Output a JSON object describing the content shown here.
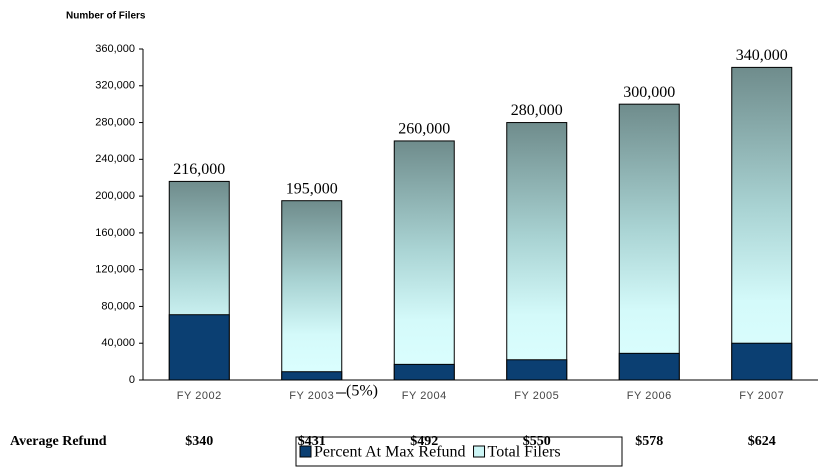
{
  "chart_data": {
    "type": "bar",
    "y_label": "Number of Filers",
    "categories": [
      "FY 2002",
      "FY 2003",
      "FY 2004",
      "FY 2005",
      "FY 2006",
      "FY 2007"
    ],
    "series": [
      {
        "name": "Total Filers",
        "color": "#6f8c8c",
        "values": [
          216000,
          195000,
          260000,
          280000,
          300000,
          340000
        ],
        "value_labels": [
          "216,000",
          "195,000",
          "260,000",
          "280,000",
          "300,000",
          "340,000"
        ]
      },
      {
        "name": "Percent At Max Refund",
        "color": "#0b3f72",
        "values": [
          71000,
          9000,
          17000,
          22000,
          29000,
          40000
        ]
      }
    ],
    "ylim": [
      0,
      360000
    ],
    "yticks": [
      0,
      {
        "value": 40000,
        "label": "40,000"
      },
      {
        "value": 80000,
        "label": "80,000"
      },
      {
        "value": 120000,
        "label": "120,000"
      },
      {
        "value": 160000,
        "label": "160,000"
      },
      {
        "value": 200000,
        "label": "200,000"
      },
      {
        "value": 240000,
        "label": "240,000"
      },
      {
        "value": 280000,
        "label": "280,000"
      },
      {
        "value": 320000,
        "label": "320,000"
      },
      {
        "value": 360000,
        "label": "360,000"
      }
    ],
    "annotation": "(5%)",
    "refund_label": "Average Refund",
    "refunds": [
      "$340",
      "$431",
      "$492",
      "$550",
      "$578",
      "$624"
    ]
  }
}
